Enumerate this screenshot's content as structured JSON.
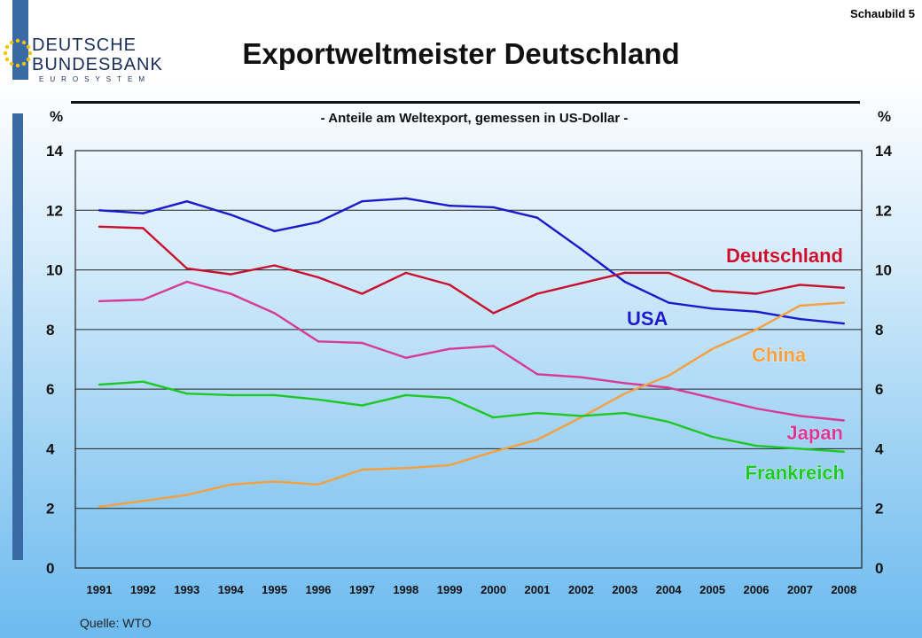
{
  "header": {
    "logo": {
      "line1": "DEUTSCHE",
      "line2": "BUNDESBANK",
      "line3": "EUROSYSTEM"
    },
    "slide_label": "Schaubild 5"
  },
  "colors": {
    "usa": "#1a1acd",
    "deutschland": "#c8102e",
    "japan": "#d63a96",
    "china": "#f5a040",
    "frankreich": "#1dc826"
  },
  "chart_data": {
    "type": "line",
    "title": "Exportweltmeister Deutschland",
    "subtitle": "- Anteile am Weltexport, gemessen in US-Dollar -",
    "ylabel_left": "%",
    "ylabel_right": "%",
    "ylim": [
      0,
      14
    ],
    "yticks": [
      0,
      2,
      4,
      6,
      8,
      10,
      12,
      14
    ],
    "grid": true,
    "categories": [
      "1991",
      "1992",
      "1993",
      "1994",
      "1995",
      "1996",
      "1997",
      "1998",
      "1999",
      "2000",
      "2001",
      "2002",
      "2003",
      "2004",
      "2005",
      "2006",
      "2007",
      "2008"
    ],
    "series": [
      {
        "name": "USA",
        "color": "#1a1acd",
        "values": [
          12.0,
          11.9,
          12.3,
          11.85,
          11.3,
          11.6,
          12.3,
          12.4,
          12.15,
          12.1,
          11.75,
          10.7,
          9.6,
          8.9,
          8.7,
          8.6,
          8.35,
          8.2
        ]
      },
      {
        "name": "Deutschland",
        "color": "#c8102e",
        "values": [
          11.45,
          11.4,
          10.05,
          9.85,
          10.15,
          9.75,
          9.2,
          9.9,
          9.5,
          8.55,
          9.2,
          9.55,
          9.9,
          9.9,
          9.3,
          9.2,
          9.5,
          9.4
        ]
      },
      {
        "name": "Japan",
        "color": "#d63a96",
        "values": [
          8.95,
          9.0,
          9.6,
          9.2,
          8.55,
          7.6,
          7.55,
          7.05,
          7.35,
          7.45,
          6.5,
          6.4,
          6.2,
          6.05,
          5.7,
          5.35,
          5.1,
          4.95
        ]
      },
      {
        "name": "China",
        "color": "#f5a040",
        "values": [
          2.05,
          2.25,
          2.45,
          2.8,
          2.9,
          2.8,
          3.3,
          3.35,
          3.45,
          3.9,
          4.3,
          5.05,
          5.85,
          6.45,
          7.35,
          8.0,
          8.8,
          8.9
        ]
      },
      {
        "name": "Frankreich",
        "color": "#1dc826",
        "values": [
          6.15,
          6.25,
          5.85,
          5.8,
          5.8,
          5.65,
          5.45,
          5.8,
          5.7,
          5.05,
          5.2,
          5.1,
          5.2,
          4.9,
          4.4,
          4.1,
          4.0,
          3.9
        ]
      }
    ],
    "series_labels": [
      {
        "name": "Deutschland",
        "text": "Deutschland"
      },
      {
        "name": "USA",
        "text": "USA"
      },
      {
        "name": "China",
        "text": "China"
      },
      {
        "name": "Japan",
        "text": "Japan"
      },
      {
        "name": "Frankreich",
        "text": "Frankreich"
      }
    ],
    "source": "Quelle: WTO"
  }
}
